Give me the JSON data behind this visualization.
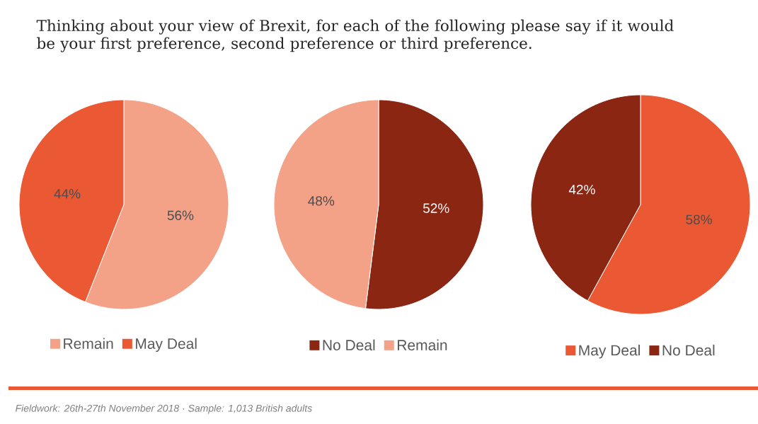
{
  "chart_data": [
    {
      "type": "pie",
      "title": "Thinking about your view of Brexit, for each of the following please say if it would be your first preference, second preference or third preference.",
      "annotations": [
        "Fieldwork: 26th-27th November 2018 · Sample: 1,013 British adults"
      ],
      "categories": [
        "Remain",
        "May Deal"
      ],
      "values": [
        56,
        44
      ],
      "colors": [
        "#f3a187",
        "#ea5934"
      ],
      "value_labels": [
        "56%",
        "44%"
      ],
      "legend": "bottom"
    },
    {
      "type": "pie",
      "categories": [
        "No Deal",
        "Remain"
      ],
      "values": [
        52,
        48
      ],
      "colors": [
        "#8a2612",
        "#f3a187"
      ],
      "value_labels": [
        "52%",
        "48%"
      ],
      "legend": "bottom"
    },
    {
      "type": "pie",
      "categories": [
        "May Deal",
        "No Deal"
      ],
      "values": [
        58,
        42
      ],
      "colors": [
        "#ea5934",
        "#8a2612"
      ],
      "value_labels": [
        "58%",
        "42%"
      ],
      "legend": "bottom"
    }
  ]
}
